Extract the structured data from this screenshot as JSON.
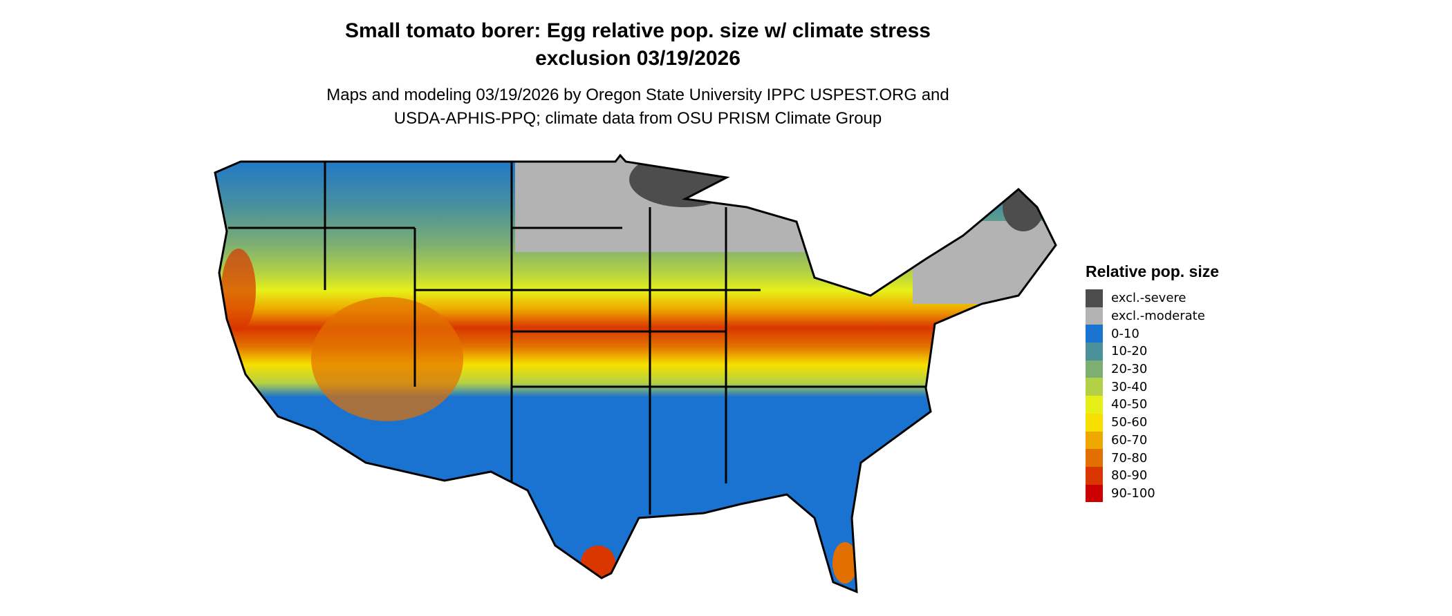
{
  "title_line1": "Small tomato borer: Egg relative pop. size w/ climate stress",
  "title_line2": "exclusion 03/19/2026",
  "subtitle_line1": "Maps and modeling 03/19/2026 by Oregon State University IPPC USPEST.ORG and",
  "subtitle_line2": "USDA-APHIS-PPQ; climate data from OSU PRISM Climate Group",
  "legend": {
    "title": "Relative pop. size",
    "items": [
      {
        "label": "excl.-severe",
        "color": "#4d4d4d"
      },
      {
        "label": "excl.-moderate",
        "color": "#b3b3b3"
      },
      {
        "label": "0-10",
        "color": "#1a73d0"
      },
      {
        "label": "10-20",
        "color": "#4a919c"
      },
      {
        "label": "20-30",
        "color": "#7daf72"
      },
      {
        "label": "30-40",
        "color": "#b3d146"
      },
      {
        "label": "40-50",
        "color": "#e6f018"
      },
      {
        "label": "50-60",
        "color": "#f7e000"
      },
      {
        "label": "60-70",
        "color": "#eea800"
      },
      {
        "label": "70-80",
        "color": "#e27000"
      },
      {
        "label": "80-90",
        "color": "#d93600"
      },
      {
        "label": "90-100",
        "color": "#cc0000"
      }
    ]
  }
}
